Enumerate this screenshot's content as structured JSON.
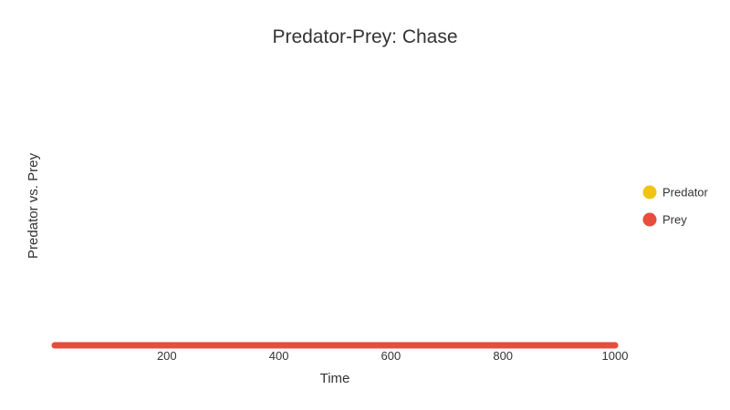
{
  "chart_data": {
    "type": "line",
    "title": "Predator-Prey: Chase",
    "xlabel": "Time",
    "ylabel": "Predator vs. Prey",
    "x": [
      0,
      100,
      200,
      300,
      400,
      500,
      600,
      700,
      800,
      900,
      1000
    ],
    "xlim": [
      0,
      1000
    ],
    "xticks": [
      200,
      400,
      600,
      800,
      1000
    ],
    "xtick_labels": [
      "200",
      "400",
      "600",
      "800",
      "1000"
    ],
    "ylim": [
      0,
      1
    ],
    "grid": false,
    "legend_position": "right",
    "series": [
      {
        "name": "Predator",
        "color": "#f1c40f",
        "values": [
          0,
          0,
          0,
          0,
          0,
          0,
          0,
          0,
          0,
          0,
          0
        ]
      },
      {
        "name": "Prey",
        "color": "#e74c3c",
        "values": [
          0,
          0,
          0,
          0,
          0,
          0,
          0,
          0,
          0,
          0,
          0
        ]
      }
    ]
  }
}
